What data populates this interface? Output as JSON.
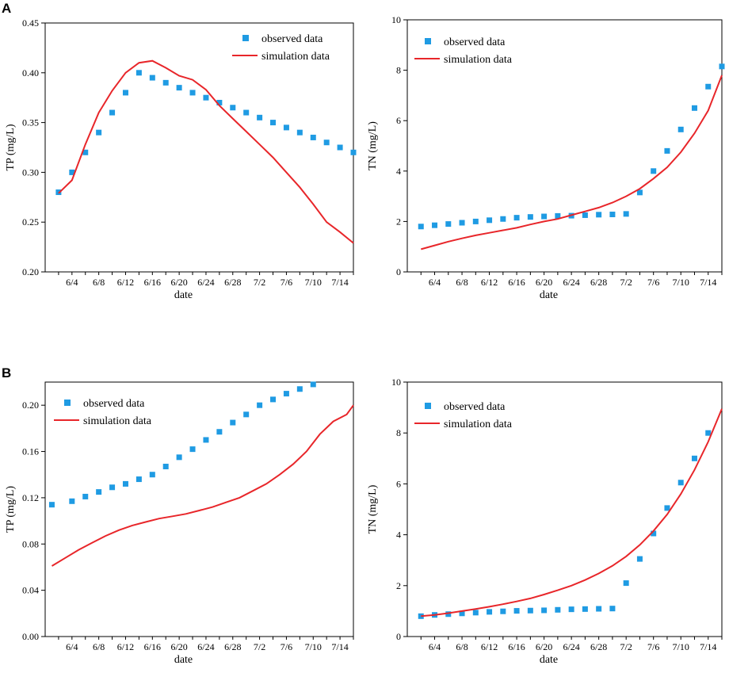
{
  "panel_labels": [
    "A",
    "B"
  ],
  "colors": {
    "observed": "#1f9be3",
    "simulation": "#e8262a",
    "axis": "#000000"
  },
  "chart_data": [
    {
      "type": "line",
      "panel": "A",
      "xlabel": "date",
      "ylabel": "TP (mg/L)",
      "ylim": [
        0.2,
        0.45
      ],
      "yticks": [
        "0.20",
        "0.25",
        "0.30",
        "0.35",
        "0.40",
        "0.45"
      ],
      "yticks_values": [
        0.2,
        0.25,
        0.3,
        0.35,
        0.4,
        0.45
      ],
      "xlim": [
        0,
        46
      ],
      "xticks": [
        "6/4",
        "6/8",
        "6/12",
        "6/16",
        "6/20",
        "6/24",
        "6/28",
        "7/2",
        "7/6",
        "7/10",
        "7/14"
      ],
      "xticks_values": [
        4,
        8,
        12,
        16,
        20,
        24,
        28,
        32,
        36,
        40,
        44
      ],
      "legend": [
        "observed data",
        "simulation data"
      ],
      "series": [
        {
          "name": "observed data",
          "style": "scatter",
          "x": [
            2,
            4,
            6,
            8,
            10,
            12,
            14,
            16,
            18,
            20,
            22,
            24,
            26,
            28,
            30,
            32,
            34,
            36,
            38,
            40,
            42,
            44,
            46
          ],
          "y": [
            0.28,
            0.3,
            0.32,
            0.34,
            0.36,
            0.38,
            0.4,
            0.395,
            0.39,
            0.385,
            0.38,
            0.375,
            0.37,
            0.365,
            0.36,
            0.355,
            0.35,
            0.345,
            0.34,
            0.335,
            0.33,
            0.325,
            0.32
          ]
        },
        {
          "name": "simulation data",
          "style": "line",
          "x": [
            2,
            4,
            6,
            8,
            10,
            12,
            14,
            16,
            18,
            20,
            22,
            24,
            26,
            28,
            30,
            32,
            34,
            36,
            38,
            40,
            42,
            44,
            46
          ],
          "y": [
            0.279,
            0.292,
            0.328,
            0.36,
            0.382,
            0.4,
            0.41,
            0.412,
            0.405,
            0.397,
            0.393,
            0.383,
            0.367,
            0.354,
            0.341,
            0.328,
            0.315,
            0.3,
            0.285,
            0.268,
            0.25,
            0.24,
            0.229
          ]
        }
      ]
    },
    {
      "type": "line",
      "panel": "A",
      "xlabel": "date",
      "ylabel": "TN (mg/L)",
      "ylim": [
        0,
        10
      ],
      "yticks": [
        "0",
        "2",
        "4",
        "6",
        "8",
        "10"
      ],
      "yticks_values": [
        0,
        2,
        4,
        6,
        8,
        10
      ],
      "xlim": [
        0,
        46
      ],
      "xticks": [
        "6/4",
        "6/8",
        "6/12",
        "6/16",
        "6/20",
        "6/24",
        "6/28",
        "7/2",
        "7/6",
        "7/10",
        "7/14"
      ],
      "xticks_values": [
        4,
        8,
        12,
        16,
        20,
        24,
        28,
        32,
        36,
        40,
        44
      ],
      "legend": [
        "observed data",
        "simulation data"
      ],
      "series": [
        {
          "name": "observed data",
          "style": "scatter",
          "x": [
            2,
            4,
            6,
            8,
            10,
            12,
            14,
            16,
            18,
            20,
            22,
            24,
            26,
            28,
            30,
            32,
            34,
            36,
            38,
            40,
            42,
            44,
            46
          ],
          "y": [
            1.8,
            1.85,
            1.9,
            1.95,
            2.0,
            2.05,
            2.1,
            2.15,
            2.18,
            2.2,
            2.22,
            2.23,
            2.25,
            2.27,
            2.28,
            2.3,
            3.15,
            4.0,
            4.8,
            5.65,
            6.5,
            7.35,
            8.15
          ]
        },
        {
          "name": "simulation data",
          "style": "line",
          "x": [
            2,
            4,
            6,
            8,
            10,
            12,
            14,
            16,
            18,
            20,
            22,
            24,
            26,
            28,
            30,
            32,
            34,
            36,
            38,
            40,
            42,
            44,
            46
          ],
          "y": [
            0.9,
            1.05,
            1.2,
            1.33,
            1.45,
            1.55,
            1.65,
            1.75,
            1.88,
            2.0,
            2.1,
            2.25,
            2.4,
            2.55,
            2.75,
            3.0,
            3.3,
            3.7,
            4.15,
            4.75,
            5.5,
            6.4,
            7.8
          ]
        }
      ]
    },
    {
      "type": "line",
      "panel": "B",
      "xlabel": "date",
      "ylabel": "TP (mg/L)",
      "ylim": [
        0.0,
        0.22
      ],
      "yticks": [
        "0.00",
        "0.04",
        "0.08",
        "0.12",
        "0.16",
        "0.20"
      ],
      "yticks_values": [
        0.0,
        0.04,
        0.08,
        0.12,
        0.16,
        0.2
      ],
      "xlim": [
        0,
        46
      ],
      "xticks": [
        "6/4",
        "6/8",
        "6/12",
        "6/16",
        "6/20",
        "6/24",
        "6/28",
        "7/2",
        "7/6",
        "7/10",
        "7/14"
      ],
      "xticks_values": [
        4,
        8,
        12,
        16,
        20,
        24,
        28,
        32,
        36,
        40,
        44
      ],
      "legend": [
        "observed data",
        "simulation data"
      ],
      "series": [
        {
          "name": "observed data",
          "style": "scatter",
          "x": [
            1,
            4,
            6,
            8,
            10,
            12,
            14,
            16,
            18,
            20,
            22,
            24,
            26,
            28,
            30,
            32,
            34,
            36,
            38,
            40
          ],
          "y": [
            0.114,
            0.117,
            0.121,
            0.125,
            0.129,
            0.132,
            0.136,
            0.14,
            0.147,
            0.155,
            0.162,
            0.17,
            0.177,
            0.185,
            0.192,
            0.2,
            0.205,
            0.21,
            0.214,
            0.218
          ]
        },
        {
          "name": "simulation data",
          "style": "line",
          "x": [
            1,
            3,
            5,
            7,
            9,
            11,
            13,
            15,
            17,
            19,
            21,
            23,
            25,
            27,
            29,
            31,
            33,
            35,
            37,
            39,
            41,
            43,
            45,
            46
          ],
          "y": [
            0.061,
            0.068,
            0.075,
            0.081,
            0.087,
            0.092,
            0.096,
            0.099,
            0.102,
            0.104,
            0.106,
            0.109,
            0.112,
            0.116,
            0.12,
            0.126,
            0.132,
            0.14,
            0.149,
            0.16,
            0.175,
            0.186,
            0.192,
            0.2
          ]
        }
      ]
    },
    {
      "type": "line",
      "panel": "B",
      "xlabel": "date",
      "ylabel": "TN (mg/L)",
      "ylim": [
        0,
        10
      ],
      "yticks": [
        "0",
        "2",
        "4",
        "6",
        "8",
        "10"
      ],
      "yticks_values": [
        0,
        2,
        4,
        6,
        8,
        10
      ],
      "xlim": [
        0,
        46
      ],
      "xticks": [
        "6/4",
        "6/8",
        "6/12",
        "6/16",
        "6/20",
        "6/24",
        "6/28",
        "7/2",
        "7/6",
        "7/10",
        "7/14"
      ],
      "xticks_values": [
        4,
        8,
        12,
        16,
        20,
        24,
        28,
        32,
        36,
        40,
        44
      ],
      "legend": [
        "observed data",
        "simulation data"
      ],
      "series": [
        {
          "name": "observed data",
          "style": "scatter",
          "x": [
            2,
            4,
            6,
            8,
            10,
            12,
            14,
            16,
            18,
            20,
            22,
            24,
            26,
            28,
            30,
            32,
            34,
            36,
            38,
            40,
            42,
            44
          ],
          "y": [
            0.8,
            0.85,
            0.88,
            0.91,
            0.94,
            0.97,
            0.99,
            1.01,
            1.02,
            1.03,
            1.05,
            1.07,
            1.08,
            1.09,
            1.1,
            2.1,
            3.05,
            4.05,
            5.05,
            6.05,
            7.0,
            8.0
          ]
        },
        {
          "name": "simulation data",
          "style": "line",
          "x": [
            2,
            4,
            6,
            8,
            10,
            12,
            14,
            16,
            18,
            20,
            22,
            24,
            26,
            28,
            30,
            32,
            34,
            36,
            38,
            40,
            42,
            44,
            46
          ],
          "y": [
            0.8,
            0.85,
            0.92,
            1.0,
            1.08,
            1.17,
            1.27,
            1.38,
            1.5,
            1.65,
            1.82,
            2.0,
            2.22,
            2.48,
            2.78,
            3.15,
            3.6,
            4.15,
            4.8,
            5.6,
            6.55,
            7.65,
            8.95
          ]
        }
      ]
    }
  ]
}
